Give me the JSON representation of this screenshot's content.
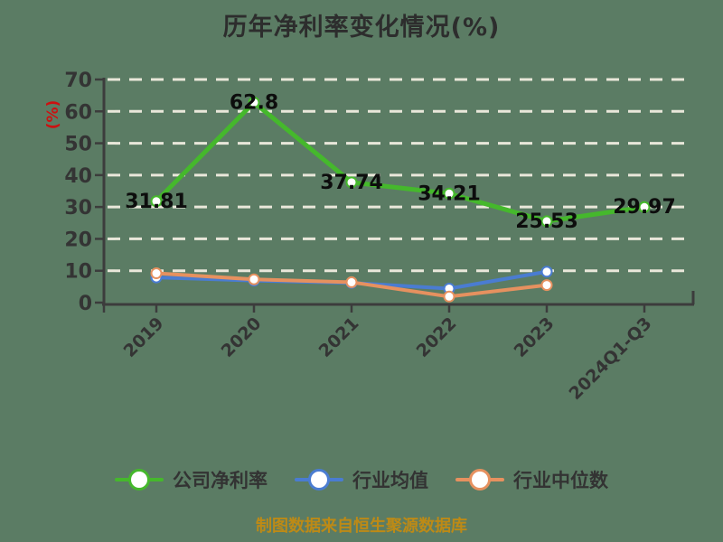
{
  "title": "历年净利率变化情况(%)",
  "footer_note": "制图数据来自恒生聚源数据库",
  "colors": {
    "background": "#5b7c64",
    "grid": "#e9e7da",
    "axis": "#3c3c3c",
    "tick_label": "#343434",
    "data_label": "#0d0d0d",
    "y_axis_unit_label": "#cc1111",
    "footer": "#bd8a16",
    "marker_fill": "#ffffff"
  },
  "chart_data": {
    "type": "line",
    "title": "历年净利率变化情况(%)",
    "ylabel": "(%)",
    "xlabel": "",
    "ylim": [
      0,
      70
    ],
    "yticks": [
      0,
      10,
      20,
      30,
      40,
      50,
      60,
      70
    ],
    "grid": "horizontal-dashed-white",
    "legend_position": "bottom",
    "categories": [
      "2019",
      "2020",
      "2021",
      "2022",
      "2023",
      "2024Q1-Q3"
    ],
    "series": [
      {
        "name": "公司净利率",
        "color": "#45b82c",
        "values": [
          31.81,
          62.8,
          37.74,
          34.21,
          25.53,
          29.97
        ],
        "labels": [
          "31.81",
          "62.8",
          "37.74",
          "34.21",
          "25.53",
          "29.97"
        ]
      },
      {
        "name": "行业均值",
        "color": "#4a7cd1",
        "values": [
          7.9,
          6.9,
          6.2,
          4.4,
          9.7,
          null
        ],
        "labels": null
      },
      {
        "name": "行业中位数",
        "color": "#e6915f",
        "values": [
          9.2,
          7.3,
          6.4,
          1.9,
          5.5,
          null
        ],
        "labels": null
      }
    ]
  }
}
